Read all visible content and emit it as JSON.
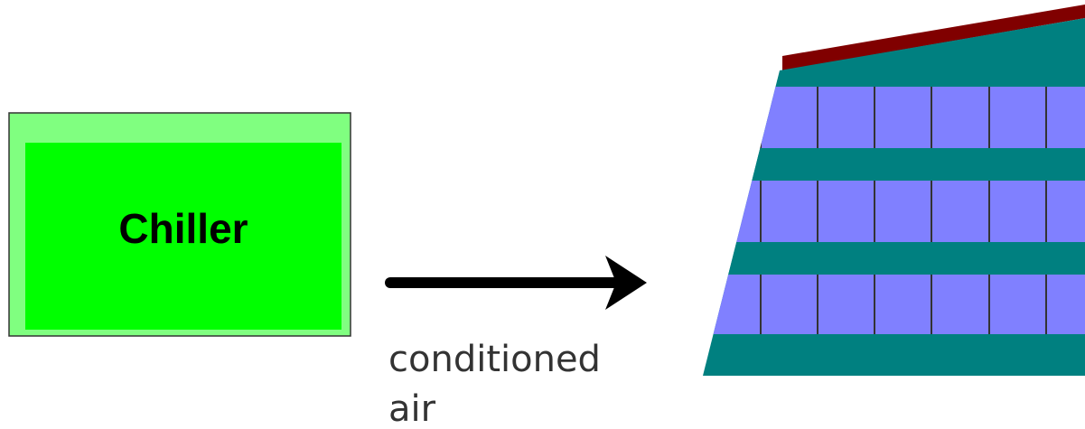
{
  "nodes": [
    {
      "label": "Chiller"
    }
  ],
  "edges": [
    {
      "label_lines": [
        "conditioned",
        "air"
      ]
    }
  ]
}
